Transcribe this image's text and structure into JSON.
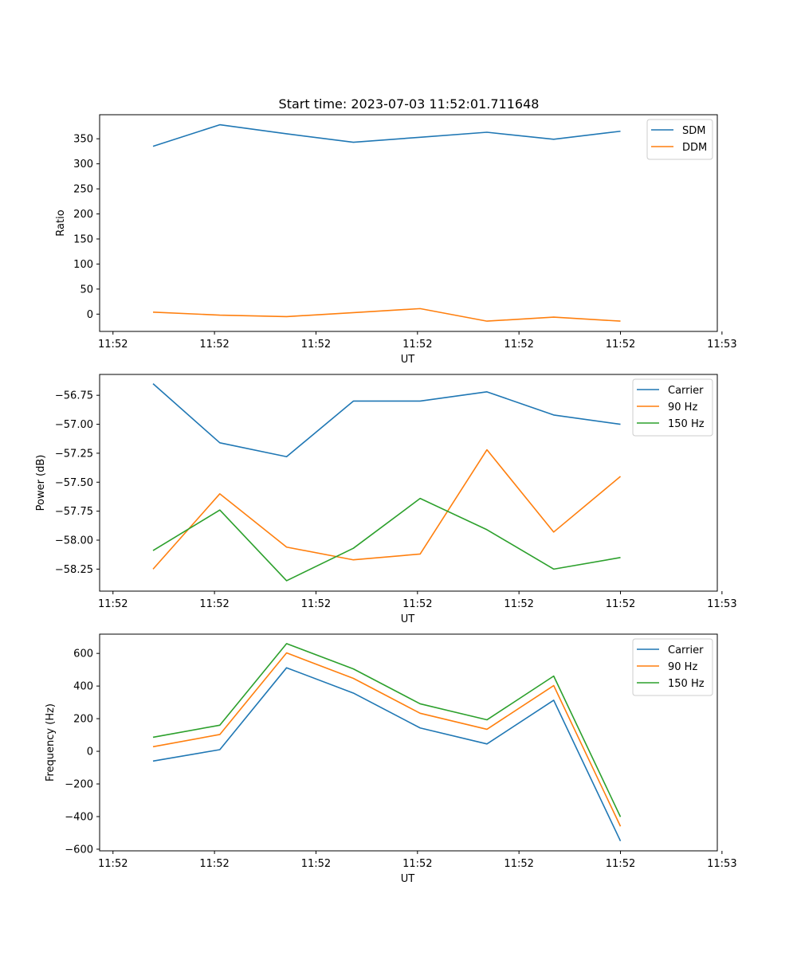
{
  "figure_title": "Start time: 2023-07-03 11:52:01.711648",
  "colors": {
    "blue": "#1f77b4",
    "orange": "#ff7f0e",
    "green": "#2ca02c",
    "axis": "#000000",
    "legend_border": "#cccccc"
  },
  "chart_data": [
    {
      "type": "line",
      "name": "ratio",
      "title": "Start time: 2023-07-03 11:52:01.711648",
      "xlabel": "UT",
      "ylabel": "Ratio",
      "x": [
        1,
        2,
        3,
        4,
        5,
        6,
        7,
        8
      ],
      "xlim": [
        0.2,
        9.45
      ],
      "xticks": [
        0.4,
        1.92,
        3.44,
        4.96,
        6.48,
        8.0,
        9.52
      ],
      "xtick_labels": [
        "11:52",
        "11:52",
        "11:52",
        "11:52",
        "11:52",
        "11:52",
        "11:53"
      ],
      "ylim": [
        -34.5,
        398
      ],
      "yticks": [
        0,
        50,
        100,
        150,
        200,
        250,
        300,
        350
      ],
      "ytick_labels": [
        "0",
        "50",
        "100",
        "150",
        "200",
        "250",
        "300",
        "350"
      ],
      "legend": "upper right",
      "series": [
        {
          "name": "SDM",
          "color": "#1f77b4",
          "values": [
            335,
            378,
            360,
            343,
            353,
            363,
            349,
            365
          ]
        },
        {
          "name": "DDM",
          "color": "#ff7f0e",
          "values": [
            4,
            -2,
            -5,
            3,
            11,
            -14,
            -6,
            -14
          ]
        }
      ]
    },
    {
      "type": "line",
      "name": "power",
      "xlabel": "UT",
      "ylabel": "Power (dB)",
      "x": [
        1,
        2,
        3,
        4,
        5,
        6,
        7,
        8
      ],
      "xlim": [
        0.2,
        9.45
      ],
      "xticks": [
        0.4,
        1.92,
        3.44,
        4.96,
        6.48,
        8.0,
        9.52
      ],
      "xtick_labels": [
        "11:52",
        "11:52",
        "11:52",
        "11:52",
        "11:52",
        "11:52",
        "11:53"
      ],
      "ylim": [
        -58.44,
        -56.57
      ],
      "yticks": [
        -58.25,
        -58.0,
        -57.75,
        -57.5,
        -57.25,
        -57.0,
        -56.75
      ],
      "ytick_labels": [
        "−58.25",
        "−58.00",
        "−57.75",
        "−57.50",
        "−57.25",
        "−57.00",
        "−56.75"
      ],
      "legend": "upper right",
      "series": [
        {
          "name": "Carrier",
          "color": "#1f77b4",
          "values": [
            -56.65,
            -57.16,
            -57.28,
            -56.8,
            -56.8,
            -56.72,
            -56.92,
            -57.0
          ]
        },
        {
          "name": "90 Hz",
          "color": "#ff7f0e",
          "values": [
            -58.25,
            -57.6,
            -58.06,
            -58.17,
            -58.12,
            -57.22,
            -57.93,
            -57.45
          ]
        },
        {
          "name": "150 Hz",
          "color": "#2ca02c",
          "values": [
            -58.09,
            -57.74,
            -58.35,
            -58.07,
            -57.64,
            -57.91,
            -58.25,
            -58.15
          ]
        }
      ]
    },
    {
      "type": "line",
      "name": "frequency",
      "xlabel": "UT",
      "ylabel": "Frequency (Hz)",
      "x": [
        1,
        2,
        3,
        4,
        5,
        6,
        7,
        8
      ],
      "xlim": [
        0.2,
        9.45
      ],
      "xticks": [
        0.4,
        1.92,
        3.44,
        4.96,
        6.48,
        8.0,
        9.52
      ],
      "xtick_labels": [
        "11:52",
        "11:52",
        "11:52",
        "11:52",
        "11:52",
        "11:52",
        "11:53"
      ],
      "ylim": [
        -610,
        718
      ],
      "yticks": [
        -600,
        -400,
        -200,
        0,
        200,
        400,
        600
      ],
      "ytick_labels": [
        "−600",
        "−400",
        "−200",
        "0",
        "200",
        "400",
        "600"
      ],
      "legend": "upper right",
      "series": [
        {
          "name": "Carrier",
          "color": "#1f77b4",
          "values": [
            -60,
            10,
            512,
            357,
            143,
            45,
            313,
            -550
          ]
        },
        {
          "name": "90 Hz",
          "color": "#ff7f0e",
          "values": [
            28,
            103,
            603,
            447,
            233,
            135,
            403,
            -460
          ]
        },
        {
          "name": "150 Hz",
          "color": "#2ca02c",
          "values": [
            86,
            160,
            660,
            505,
            291,
            193,
            461,
            -402
          ]
        }
      ]
    }
  ]
}
